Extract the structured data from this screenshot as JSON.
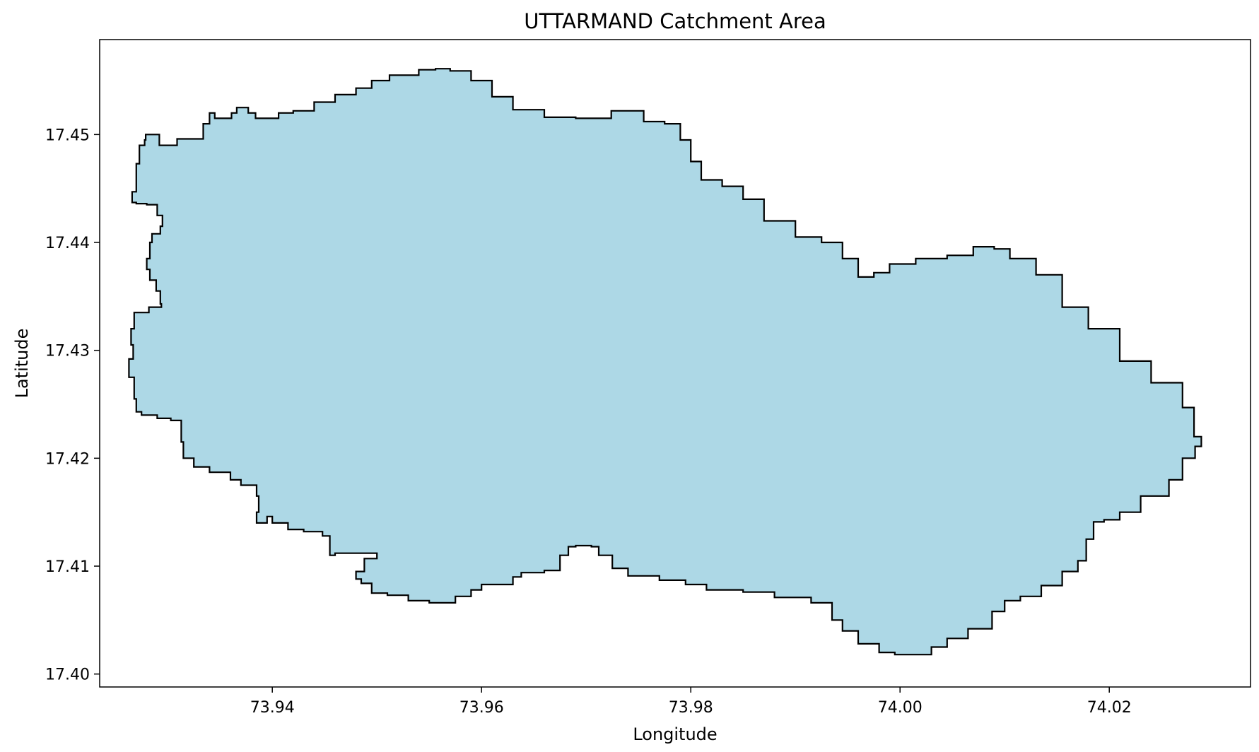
{
  "chart_data": {
    "type": "area",
    "title": "UTTARMAND Catchment Area",
    "xlabel": "Longitude",
    "ylabel": "Latitude",
    "xlim": [
      73.9235,
      74.0335
    ],
    "ylim": [
      17.3988,
      17.4588
    ],
    "xticks": [
      {
        "value": 73.94,
        "label": "73.94"
      },
      {
        "value": 73.96,
        "label": "73.96"
      },
      {
        "value": 73.98,
        "label": "73.98"
      },
      {
        "value": 74.0,
        "label": "74.00"
      },
      {
        "value": 74.02,
        "label": "74.02"
      }
    ],
    "yticks": [
      {
        "value": 17.4,
        "label": "17.40"
      },
      {
        "value": 17.41,
        "label": "17.41"
      },
      {
        "value": 17.42,
        "label": "17.42"
      },
      {
        "value": 17.43,
        "label": "17.43"
      },
      {
        "value": 17.44,
        "label": "17.44"
      },
      {
        "value": 17.45,
        "label": "17.45"
      }
    ],
    "grid": false,
    "legend": false,
    "fill_color": "#add8e6",
    "edge_color": "#000000",
    "polygon": [
      [
        73.9273,
        17.449
      ],
      [
        73.9278,
        17.4495
      ],
      [
        73.9279,
        17.45
      ],
      [
        73.9289,
        17.45
      ],
      [
        73.9292,
        17.449
      ],
      [
        73.9306,
        17.449
      ],
      [
        73.9309,
        17.4496
      ],
      [
        73.9334,
        17.451
      ],
      [
        73.934,
        17.452
      ],
      [
        73.9345,
        17.4515
      ],
      [
        73.9361,
        17.452
      ],
      [
        73.9366,
        17.4525
      ],
      [
        73.9377,
        17.452
      ],
      [
        73.9384,
        17.4515
      ],
      [
        73.9406,
        17.452
      ],
      [
        73.942,
        17.4522
      ],
      [
        73.944,
        17.453
      ],
      [
        73.946,
        17.4537
      ],
      [
        73.948,
        17.4543
      ],
      [
        73.9495,
        17.455
      ],
      [
        73.9512,
        17.4555
      ],
      [
        73.954,
        17.456
      ],
      [
        73.9556,
        17.4561
      ],
      [
        73.957,
        17.4559
      ],
      [
        73.959,
        17.455
      ],
      [
        73.961,
        17.4535
      ],
      [
        73.963,
        17.4523
      ],
      [
        73.966,
        17.4516
      ],
      [
        73.969,
        17.4515
      ],
      [
        73.9715,
        17.4515
      ],
      [
        73.9724,
        17.4522
      ],
      [
        73.974,
        17.4522
      ],
      [
        73.9755,
        17.4512
      ],
      [
        73.9775,
        17.451
      ],
      [
        73.979,
        17.4495
      ],
      [
        73.98,
        17.4475
      ],
      [
        73.981,
        17.4458
      ],
      [
        73.983,
        17.4452
      ],
      [
        73.985,
        17.444
      ],
      [
        73.987,
        17.442
      ],
      [
        73.99,
        17.4405
      ],
      [
        73.9925,
        17.44
      ],
      [
        73.9945,
        17.4385
      ],
      [
        73.996,
        17.4368
      ],
      [
        73.9975,
        17.4372
      ],
      [
        73.999,
        17.438
      ],
      [
        74.0015,
        17.4385
      ],
      [
        74.0045,
        17.4388
      ],
      [
        74.007,
        17.4396
      ],
      [
        74.009,
        17.4394
      ],
      [
        74.0105,
        17.4385
      ],
      [
        74.013,
        17.437
      ],
      [
        74.0155,
        17.434
      ],
      [
        74.018,
        17.432
      ],
      [
        74.021,
        17.429
      ],
      [
        74.024,
        17.427
      ],
      [
        74.027,
        17.4247
      ],
      [
        74.0281,
        17.422
      ],
      [
        74.0288,
        17.4211
      ],
      [
        74.0282,
        17.42
      ],
      [
        74.027,
        17.418
      ],
      [
        74.0257,
        17.4165
      ],
      [
        74.023,
        17.415
      ],
      [
        74.021,
        17.4143
      ],
      [
        74.0195,
        17.4141
      ],
      [
        74.0185,
        17.4125
      ],
      [
        74.0178,
        17.4105
      ],
      [
        74.017,
        17.4095
      ],
      [
        74.0155,
        17.4082
      ],
      [
        74.0135,
        17.4072
      ],
      [
        74.0115,
        17.4068
      ],
      [
        74.01,
        17.4058
      ],
      [
        74.0088,
        17.4042
      ],
      [
        74.0065,
        17.4033
      ],
      [
        74.0045,
        17.4025
      ],
      [
        74.003,
        17.4018
      ],
      [
        74.0015,
        17.4018
      ],
      [
        73.9995,
        17.402
      ],
      [
        73.998,
        17.4028
      ],
      [
        73.996,
        17.404
      ],
      [
        73.9945,
        17.405
      ],
      [
        73.9935,
        17.4066
      ],
      [
        73.9915,
        17.4071
      ],
      [
        73.988,
        17.4076
      ],
      [
        73.985,
        17.4078
      ],
      [
        73.9815,
        17.4083
      ],
      [
        73.9795,
        17.4087
      ],
      [
        73.977,
        17.4091
      ],
      [
        73.974,
        17.4098
      ],
      [
        73.9725,
        17.411
      ],
      [
        73.9712,
        17.4118
      ],
      [
        73.9705,
        17.4119
      ],
      [
        73.969,
        17.4118
      ],
      [
        73.9683,
        17.411
      ],
      [
        73.9675,
        17.4096
      ],
      [
        73.966,
        17.4094
      ],
      [
        73.9638,
        17.409
      ],
      [
        73.963,
        17.4083
      ],
      [
        73.9615,
        17.4083
      ],
      [
        73.96,
        17.4078
      ],
      [
        73.959,
        17.4072
      ],
      [
        73.9575,
        17.4066
      ],
      [
        73.955,
        17.4068
      ],
      [
        73.953,
        17.4073
      ],
      [
        73.951,
        17.4075
      ],
      [
        73.9495,
        17.4084
      ],
      [
        73.9485,
        17.4088
      ],
      [
        73.948,
        17.4095
      ],
      [
        73.9488,
        17.4107
      ],
      [
        73.95,
        17.4112
      ],
      [
        73.9485,
        17.4112
      ],
      [
        73.946,
        17.411
      ],
      [
        73.9455,
        17.4128
      ],
      [
        73.9448,
        17.4132
      ],
      [
        73.943,
        17.4134
      ],
      [
        73.9415,
        17.414
      ],
      [
        73.94,
        17.4146
      ],
      [
        73.9395,
        17.414
      ],
      [
        73.9385,
        17.415
      ],
      [
        73.9387,
        17.4165
      ],
      [
        73.9385,
        17.4175
      ],
      [
        73.937,
        17.418
      ],
      [
        73.936,
        17.4187
      ],
      [
        73.934,
        17.4192
      ],
      [
        73.9325,
        17.42
      ],
      [
        73.9315,
        17.4215
      ],
      [
        73.9313,
        17.4235
      ],
      [
        73.9303,
        17.4237
      ],
      [
        73.929,
        17.424
      ],
      [
        73.9275,
        17.4243
      ],
      [
        73.927,
        17.4255
      ],
      [
        73.9268,
        17.4275
      ],
      [
        73.9263,
        17.4292
      ],
      [
        73.9267,
        17.4305
      ],
      [
        73.9265,
        17.432
      ],
      [
        73.9268,
        17.4335
      ],
      [
        73.9282,
        17.434
      ],
      [
        73.9294,
        17.4343
      ],
      [
        73.9293,
        17.4355
      ],
      [
        73.9289,
        17.4365
      ],
      [
        73.9283,
        17.4375
      ],
      [
        73.928,
        17.4385
      ],
      [
        73.9283,
        17.44
      ],
      [
        73.9285,
        17.4408
      ],
      [
        73.9293,
        17.4415
      ],
      [
        73.9295,
        17.4425
      ],
      [
        73.929,
        17.4435
      ],
      [
        73.928,
        17.4436
      ],
      [
        73.927,
        17.4437
      ],
      [
        73.9266,
        17.4447
      ],
      [
        73.927,
        17.4458
      ],
      [
        73.927,
        17.4473
      ]
    ]
  }
}
